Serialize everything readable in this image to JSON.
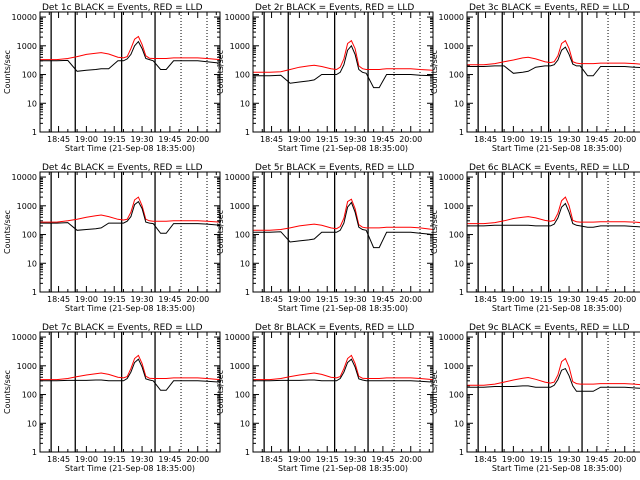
{
  "figure": {
    "panel_titles": [
      "Det 1c BLACK = Events, RED = LLD",
      "Det 2r BLACK = Events, RED = LLD",
      "Det 3c BLACK = Events, RED = LLD",
      "Det 4c BLACK = Events, RED = LLD",
      "Det 5r BLACK = Events, RED = LLD",
      "Det 6c BLACK = Events, RED = LLD",
      "Det 7c BLACK = Events, RED = LLD",
      "Det 8r BLACK = Events, RED = LLD",
      "Det 9c BLACK = Events, RED = LLD"
    ],
    "ylabel": "Counts/sec",
    "xlabel": "Start Time (21-Sep-08 18:35:00)",
    "colors": {
      "events": "#000000",
      "lld": "#ff0000",
      "axes": "#000000",
      "background": "#ffffff"
    }
  },
  "chart_data": {
    "type": "line",
    "yscale": "log",
    "ylim": [
      1,
      15000
    ],
    "yticks": [
      1,
      10,
      100,
      1000,
      10000
    ],
    "ytick_labels": [
      "1",
      "10",
      "100",
      "1000",
      "10000"
    ],
    "xlim": [
      "18:35",
      "20:12"
    ],
    "xticks": [
      "18:45",
      "19:00",
      "19:15",
      "19:30",
      "19:45",
      "20:00"
    ],
    "xtick_labels": [
      "18:45",
      "19:00",
      "19:15",
      "19:30",
      "19:45",
      "20:00"
    ],
    "vertical_lines": [
      {
        "time": "18:41",
        "style": "solid"
      },
      {
        "time": "18:54",
        "style": "solid"
      },
      {
        "time": "19:19",
        "style": "solid"
      },
      {
        "time": "19:37",
        "style": "solid"
      },
      {
        "time": "19:51",
        "style": "dotted"
      },
      {
        "time": "20:05",
        "style": "dotted"
      }
    ],
    "time_axis": [
      "18:35",
      "18:40",
      "18:44",
      "18:50",
      "18:55",
      "19:00",
      "19:05",
      "19:08",
      "19:12",
      "19:17",
      "19:20",
      "19:22",
      "19:24",
      "19:26",
      "19:28",
      "19:30",
      "19:32",
      "19:34",
      "19:36",
      "19:40",
      "19:43",
      "19:47",
      "19:50",
      "19:55",
      "20:00",
      "20:05",
      "20:12"
    ],
    "panels": [
      {
        "events": [
          300,
          300,
          300,
          310,
          130,
          140,
          150,
          160,
          160,
          300,
          300,
          350,
          500,
          1000,
          1400,
          800,
          360,
          330,
          300,
          150,
          150,
          300,
          300,
          300,
          300,
          280,
          250
        ],
        "lld": [
          330,
          330,
          330,
          360,
          420,
          500,
          550,
          580,
          520,
          400,
          380,
          420,
          800,
          1700,
          2100,
          1100,
          450,
          370,
          360,
          360,
          360,
          380,
          380,
          380,
          380,
          360,
          330
        ]
      },
      {
        "events": [
          90,
          90,
          90,
          95,
          50,
          55,
          60,
          65,
          100,
          100,
          100,
          120,
          220,
          700,
          1000,
          500,
          150,
          120,
          110,
          35,
          35,
          100,
          100,
          100,
          100,
          95,
          90
        ],
        "lld": [
          120,
          120,
          120,
          125,
          150,
          180,
          200,
          210,
          190,
          160,
          150,
          180,
          350,
          1200,
          1500,
          800,
          200,
          160,
          150,
          150,
          150,
          160,
          160,
          160,
          160,
          150,
          140
        ]
      },
      {
        "events": [
          190,
          190,
          190,
          200,
          200,
          110,
          120,
          130,
          180,
          200,
          200,
          220,
          320,
          700,
          900,
          500,
          230,
          200,
          200,
          90,
          90,
          190,
          190,
          190,
          190,
          180,
          170
        ],
        "lld": [
          220,
          220,
          220,
          240,
          280,
          320,
          380,
          400,
          350,
          280,
          260,
          280,
          450,
          1200,
          1500,
          800,
          280,
          250,
          240,
          240,
          240,
          250,
          250,
          250,
          250,
          240,
          220
        ]
      },
      {
        "events": [
          250,
          250,
          250,
          260,
          140,
          150,
          160,
          170,
          250,
          250,
          250,
          290,
          420,
          1100,
          1400,
          800,
          270,
          250,
          240,
          110,
          110,
          240,
          240,
          240,
          240,
          230,
          210
        ],
        "lld": [
          270,
          270,
          270,
          300,
          340,
          400,
          450,
          480,
          420,
          340,
          320,
          340,
          600,
          1600,
          2000,
          1000,
          340,
          300,
          290,
          290,
          290,
          300,
          300,
          300,
          300,
          290,
          270
        ]
      },
      {
        "events": [
          120,
          120,
          120,
          125,
          55,
          60,
          65,
          70,
          120,
          120,
          120,
          140,
          250,
          900,
          1300,
          600,
          180,
          150,
          140,
          35,
          35,
          120,
          120,
          120,
          120,
          110,
          100
        ],
        "lld": [
          140,
          140,
          140,
          150,
          170,
          200,
          220,
          230,
          210,
          170,
          160,
          190,
          370,
          1400,
          1700,
          800,
          220,
          180,
          170,
          170,
          170,
          180,
          180,
          180,
          180,
          170,
          150
        ]
      },
      {
        "events": [
          200,
          200,
          200,
          210,
          210,
          210,
          210,
          210,
          200,
          200,
          200,
          230,
          380,
          900,
          1200,
          600,
          240,
          210,
          200,
          180,
          180,
          200,
          200,
          200,
          200,
          190,
          180
        ],
        "lld": [
          240,
          240,
          240,
          260,
          300,
          360,
          400,
          420,
          380,
          310,
          290,
          310,
          550,
          1500,
          2000,
          1000,
          310,
          280,
          270,
          270,
          270,
          280,
          280,
          280,
          280,
          270,
          250
        ]
      },
      {
        "events": [
          300,
          300,
          300,
          310,
          310,
          310,
          320,
          320,
          300,
          300,
          300,
          360,
          600,
          1300,
          1700,
          900,
          350,
          320,
          300,
          140,
          140,
          300,
          300,
          300,
          300,
          290,
          270
        ],
        "lld": [
          330,
          330,
          330,
          360,
          420,
          480,
          530,
          560,
          500,
          400,
          380,
          420,
          800,
          1800,
          2300,
          1200,
          430,
          370,
          360,
          360,
          360,
          380,
          380,
          380,
          380,
          360,
          330
        ]
      },
      {
        "events": [
          300,
          300,
          300,
          310,
          310,
          310,
          320,
          320,
          300,
          300,
          300,
          360,
          600,
          1300,
          1700,
          900,
          350,
          320,
          300,
          300,
          300,
          300,
          300,
          300,
          300,
          290,
          270
        ],
        "lld": [
          330,
          330,
          330,
          360,
          420,
          480,
          530,
          560,
          500,
          400,
          380,
          420,
          800,
          1800,
          2300,
          1200,
          430,
          370,
          360,
          360,
          360,
          380,
          380,
          380,
          380,
          360,
          330
        ]
      },
      {
        "events": [
          180,
          180,
          180,
          190,
          190,
          190,
          200,
          200,
          180,
          180,
          180,
          210,
          330,
          700,
          800,
          450,
          200,
          130,
          130,
          130,
          130,
          180,
          180,
          180,
          180,
          170,
          160
        ],
        "lld": [
          210,
          210,
          210,
          230,
          270,
          320,
          370,
          390,
          340,
          270,
          250,
          270,
          480,
          1400,
          1800,
          900,
          280,
          240,
          230,
          230,
          230,
          240,
          240,
          240,
          240,
          230,
          210
        ]
      }
    ]
  }
}
